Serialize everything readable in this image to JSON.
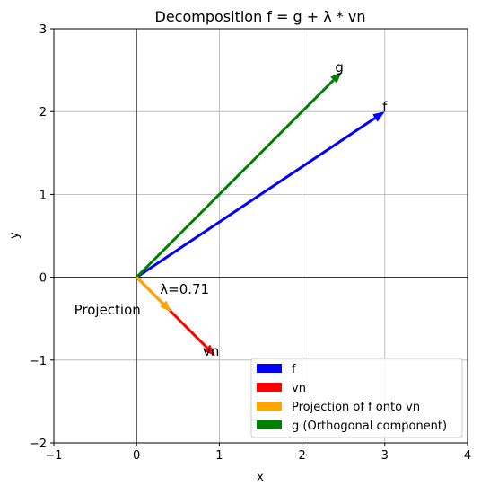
{
  "chart_data": {
    "type": "line",
    "title": "Decomposition f = g + λ * vn",
    "xlabel": "x",
    "ylabel": "y",
    "xlim": [
      -1,
      4
    ],
    "ylim": [
      -2,
      3
    ],
    "xticks": [
      -1,
      0,
      1,
      2,
      3,
      4
    ],
    "yticks": [
      -2,
      -1,
      0,
      1,
      2,
      3
    ],
    "grid": true,
    "legend_position": "bottom-right",
    "series": [
      {
        "name": "f",
        "color": "#0000ff",
        "from": [
          0,
          0
        ],
        "to": [
          3,
          2
        ]
      },
      {
        "name": "vn",
        "color": "#ff0000",
        "from": [
          0,
          0
        ],
        "to": [
          0.95,
          -0.95
        ]
      },
      {
        "name": "Projection of f onto vn",
        "color": "#ffa500",
        "from": [
          0,
          0
        ],
        "to": [
          0.42,
          -0.42
        ]
      },
      {
        "name": "g (Orthogonal component)",
        "color": "#008000",
        "from": [
          0,
          0
        ],
        "to": [
          2.48,
          2.48
        ]
      }
    ],
    "annotations": [
      {
        "text": "f",
        "x": 3.0,
        "y": 2.0,
        "color": "#000000"
      },
      {
        "text": "vn",
        "x": 0.9,
        "y": -0.95,
        "color": "#000000"
      },
      {
        "text": "g",
        "x": 2.45,
        "y": 2.48,
        "color": "#000000"
      },
      {
        "text": "Projection",
        "x": 0.05,
        "y": -0.45,
        "color": "#000000"
      },
      {
        "text": "λ=0.71",
        "x": 0.58,
        "y": -0.2,
        "color": "#ffa500"
      }
    ]
  }
}
